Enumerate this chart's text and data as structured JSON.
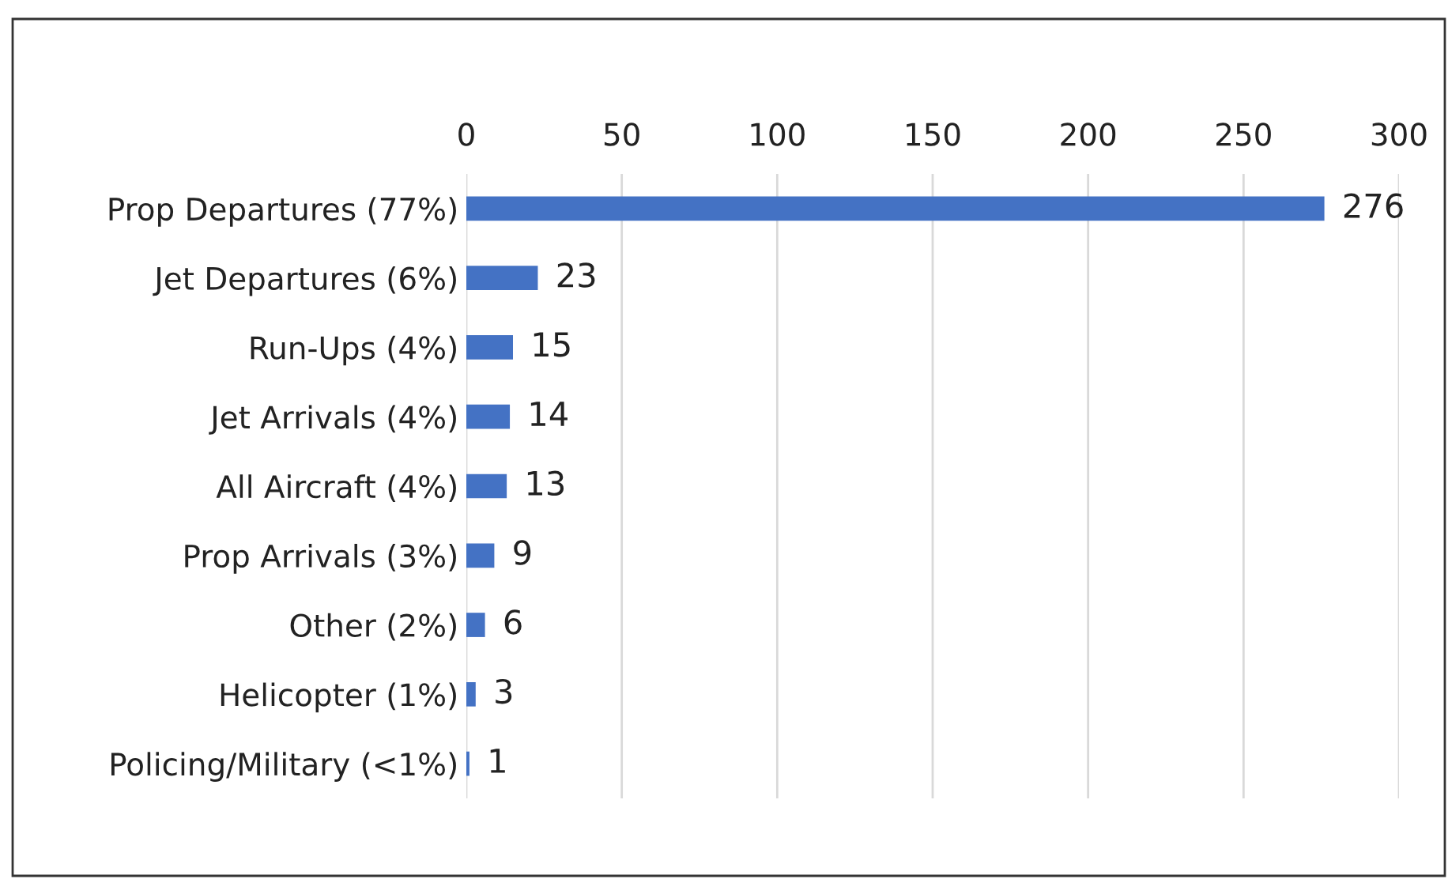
{
  "chart_data": {
    "type": "bar",
    "orientation": "horizontal",
    "categories": [
      "Prop Departures (77%)",
      "Jet Departures (6%)",
      "Run-Ups (4%)",
      "Jet Arrivals (4%)",
      "All Aircraft (4%)",
      "Prop Arrivals (3%)",
      "Other (2%)",
      "Helicopter (1%)",
      "Policing/Military (<1%)"
    ],
    "values": [
      276,
      23,
      15,
      14,
      13,
      9,
      6,
      3,
      1
    ],
    "color": "#4472c4",
    "xlim": [
      0,
      300
    ],
    "xticks": [
      0,
      50,
      100,
      150,
      200,
      250,
      300
    ],
    "grid": "x",
    "data_labels": true
  }
}
